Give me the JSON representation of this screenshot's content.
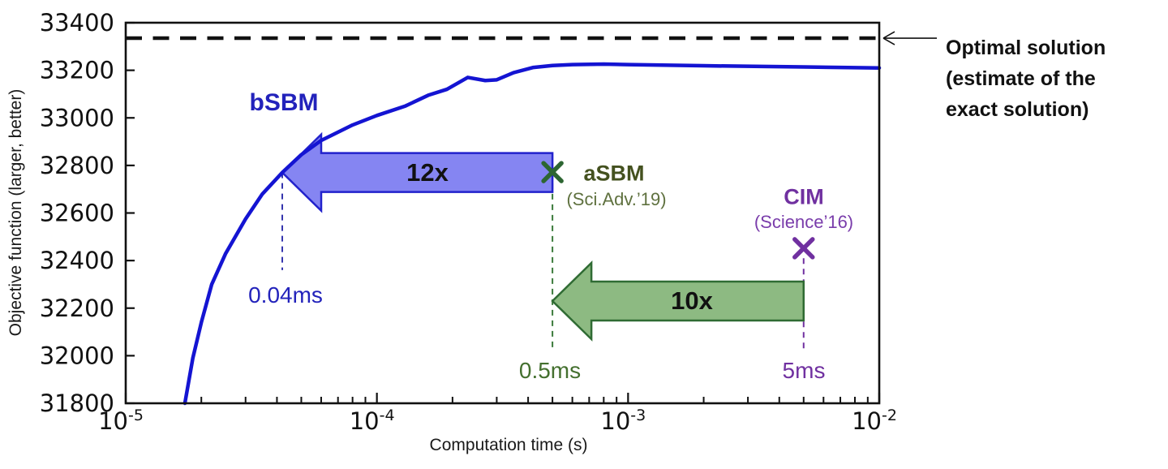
{
  "chart_data": {
    "type": "line",
    "title": "",
    "xlabel": "Computation time (s)",
    "ylabel": "Objective function (larger, better)",
    "x_scale": "log",
    "xlim": [
      1e-05,
      0.01
    ],
    "ylim": [
      31800,
      33400
    ],
    "x_ticks": [
      {
        "value": 1e-05,
        "base": "10",
        "exp": "-5"
      },
      {
        "value": 0.0001,
        "base": "10",
        "exp": "-4"
      },
      {
        "value": 0.001,
        "base": "10",
        "exp": "-3"
      },
      {
        "value": 0.01,
        "base": "10",
        "exp": "-2"
      }
    ],
    "y_ticks": [
      31800,
      32000,
      32200,
      32400,
      32600,
      32800,
      33000,
      33200,
      33400
    ],
    "grid": false,
    "legend_position": "none",
    "series": [
      {
        "name": "bSBM",
        "color": "#1414d2",
        "points": [
          [
            1.72e-05,
            31800
          ],
          [
            1.85e-05,
            31990
          ],
          [
            2e-05,
            32140
          ],
          [
            2.2e-05,
            32300
          ],
          [
            2.5e-05,
            32430
          ],
          [
            3e-05,
            32575
          ],
          [
            3.5e-05,
            32680
          ],
          [
            4.2e-05,
            32770
          ],
          [
            5e-05,
            32845
          ],
          [
            6e-05,
            32905
          ],
          [
            8e-05,
            32970
          ],
          [
            0.0001,
            33010
          ],
          [
            0.00013,
            33050
          ],
          [
            0.00016,
            33095
          ],
          [
            0.00019,
            33120
          ],
          [
            0.00023,
            33170
          ],
          [
            0.00027,
            33157
          ],
          [
            0.0003,
            33160
          ],
          [
            0.00035,
            33190
          ],
          [
            0.00042,
            33212
          ],
          [
            0.0005,
            33220
          ],
          [
            0.0006,
            33224
          ],
          [
            0.0008,
            33226
          ],
          [
            0.001,
            33224
          ],
          [
            0.002,
            33219
          ],
          [
            0.005,
            33214
          ],
          [
            0.01,
            33210
          ]
        ]
      }
    ],
    "optimal_line": {
      "value": 33335,
      "color": "#111111",
      "annotation_lines": [
        "Optimal solution",
        "(estimate of the",
        "exact solution)"
      ]
    },
    "markers": [
      {
        "name": "aSBM",
        "ref": "(Sci.Adv.’19)",
        "t": 0.0005,
        "value": 32772,
        "marker_color": "#2d6632",
        "name_color": "#44511f",
        "ref_color": "#5f713f"
      },
      {
        "name": "CIM",
        "ref": "(Science’16)",
        "t": 0.005,
        "value": 32452,
        "marker_color": "#7030a0",
        "name_color": "#7030a0",
        "ref_color": "#7a3dab"
      }
    ],
    "speedup_arrows": [
      {
        "label": "12x",
        "from_t": 0.0005,
        "to_t": 4.2e-05,
        "value": 32770,
        "fill": "#8585f2",
        "stroke": "#2222cc"
      },
      {
        "label": "10x",
        "from_t": 0.005,
        "to_t": 0.0005,
        "value": 32230,
        "fill": "#8dba82",
        "stroke": "#2f6b33"
      }
    ],
    "guides": [
      {
        "t": 4.2e-05,
        "v_from": 32770,
        "v_to": 32360,
        "color": "#3535ad"
      },
      {
        "t": 0.0005,
        "v_from": 32725,
        "v_to": 32030,
        "color": "#3a7a3a"
      },
      {
        "t": 0.005,
        "v_from": 32410,
        "v_to": 32030,
        "color": "#7030a0"
      }
    ],
    "time_labels": [
      {
        "text": "0.04ms",
        "color": "#2323bb"
      },
      {
        "text": "0.5ms",
        "color": "#44702f"
      },
      {
        "text": "5ms",
        "color": "#7030a0"
      }
    ],
    "curve_label": {
      "text": "bSBM",
      "color": "#2222bb"
    }
  }
}
